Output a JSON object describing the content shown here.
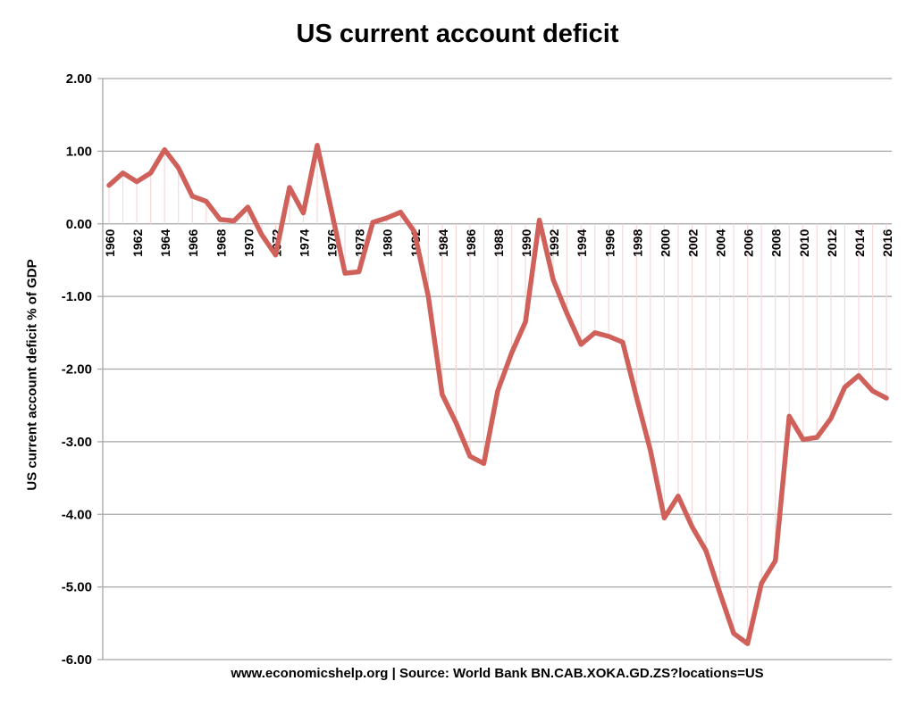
{
  "chart_data": {
    "type": "line",
    "title": "US current account deficit",
    "ylabel": "US current account deficit % of GDP",
    "xlabel": "",
    "footer": "www.economicshelp.org | Source:  World Bank BN.CAB.XOKA.GD.ZS?locations=US",
    "ylim": [
      -6,
      2
    ],
    "yticks": [
      "2.00",
      "1.00",
      "0.00",
      "-1.00",
      "-2.00",
      "-3.00",
      "-4.00",
      "-5.00",
      "-6.00"
    ],
    "grid": true,
    "legend": "none",
    "line_color": "#d0605a",
    "drop_line_color": "#f6d8d8",
    "x": [
      1960,
      1961,
      1962,
      1963,
      1964,
      1965,
      1966,
      1967,
      1968,
      1969,
      1970,
      1971,
      1972,
      1973,
      1974,
      1975,
      1976,
      1977,
      1978,
      1979,
      1980,
      1981,
      1982,
      1983,
      1984,
      1985,
      1986,
      1987,
      1988,
      1989,
      1990,
      1991,
      1992,
      1993,
      1994,
      1995,
      1996,
      1997,
      1998,
      1999,
      2000,
      2001,
      2002,
      2003,
      2004,
      2005,
      2006,
      2007,
      2008,
      2009,
      2010,
      2011,
      2012,
      2013,
      2014,
      2015,
      2016
    ],
    "values": [
      0.53,
      0.7,
      0.58,
      0.7,
      1.02,
      0.77,
      0.38,
      0.31,
      0.06,
      0.04,
      0.23,
      -0.15,
      -0.43,
      0.5,
      0.15,
      1.08,
      0.2,
      -0.68,
      -0.66,
      0.02,
      0.08,
      0.16,
      -0.11,
      -1.0,
      -2.35,
      -2.74,
      -3.2,
      -3.3,
      -2.3,
      -1.78,
      -1.35,
      0.05,
      -0.77,
      -1.24,
      -1.66,
      -1.5,
      -1.55,
      -1.63,
      -2.39,
      -3.12,
      -4.05,
      -3.75,
      -4.17,
      -4.5,
      -5.08,
      -5.64,
      -5.78,
      -4.95,
      -4.64,
      -2.65,
      -2.97,
      -2.94,
      -2.68,
      -2.25,
      -2.09,
      -2.3,
      -2.4
    ],
    "xtick_labels": [
      "1960",
      "1962",
      "1964",
      "1966",
      "1968",
      "1970",
      "1972",
      "1974",
      "1976",
      "1978",
      "1980",
      "1982",
      "1984",
      "1986",
      "1988",
      "1990",
      "1992",
      "1994",
      "1996",
      "1998",
      "2000",
      "2002",
      "2004",
      "2006",
      "2008",
      "2010",
      "2012",
      "2014",
      "2016"
    ]
  }
}
